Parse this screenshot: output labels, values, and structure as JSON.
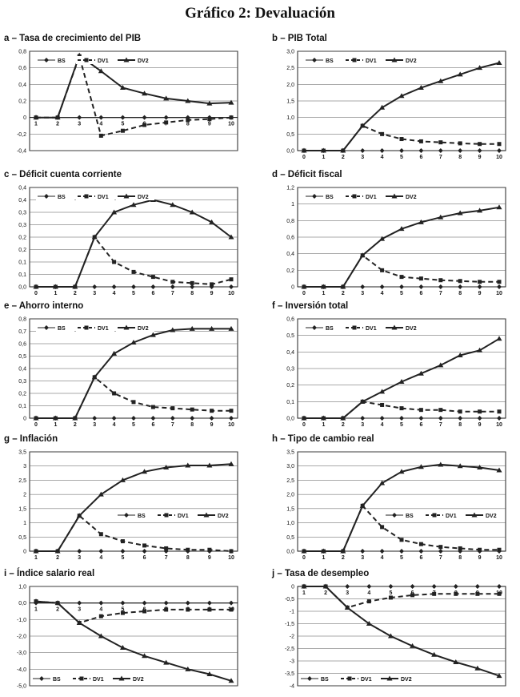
{
  "title": "Gráfico 2: Devaluación",
  "legend": [
    "BS",
    "DV1",
    "DV2"
  ],
  "chart_data": [
    {
      "type": "line",
      "title": "a – Tasa de crecimiento del PIB",
      "x": [
        1,
        2,
        3,
        4,
        5,
        6,
        7,
        8,
        9,
        10
      ],
      "ylim": [
        -0.4,
        0.8
      ],
      "yticks": [
        -0.4,
        -0.2,
        0,
        0.2,
        0.4,
        0.6,
        0.8
      ],
      "ytick_labels": [
        "-0,4",
        "-0,2",
        "0",
        "0,2",
        "0,4",
        "0,6",
        "0,8"
      ],
      "legend_position": "top",
      "series": [
        {
          "name": "BS",
          "values": [
            0,
            0,
            0,
            0,
            0,
            0,
            0,
            0,
            0,
            0
          ]
        },
        {
          "name": "DV1",
          "values": [
            0,
            0,
            0.74,
            -0.22,
            -0.16,
            -0.09,
            -0.06,
            -0.03,
            -0.02,
            0
          ]
        },
        {
          "name": "DV2",
          "values": [
            0,
            0,
            0.75,
            0.56,
            0.36,
            0.29,
            0.23,
            0.2,
            0.17,
            0.18
          ]
        }
      ]
    },
    {
      "type": "line",
      "title": "b – PIB Total",
      "x": [
        0,
        1,
        2,
        3,
        4,
        5,
        6,
        7,
        8,
        9,
        10
      ],
      "ylim": [
        0,
        3
      ],
      "yticks": [
        0,
        0.5,
        1,
        1.5,
        2,
        2.5,
        3
      ],
      "ytick_labels": [
        "0,0",
        "0,5",
        "1,0",
        "1,5",
        "2,0",
        "2,5",
        "3,0"
      ],
      "legend_position": "top",
      "series": [
        {
          "name": "BS",
          "values": [
            0,
            0,
            0,
            0,
            0,
            0,
            0,
            0,
            0,
            0,
            0
          ]
        },
        {
          "name": "DV1",
          "values": [
            0,
            0,
            0,
            0.75,
            0.5,
            0.35,
            0.28,
            0.25,
            0.22,
            0.2,
            0.2
          ]
        },
        {
          "name": "DV2",
          "values": [
            0,
            0,
            0,
            0.75,
            1.3,
            1.65,
            1.9,
            2.1,
            2.3,
            2.5,
            2.65
          ]
        }
      ]
    },
    {
      "type": "line",
      "title": "c – Déficit cuenta corriente",
      "x": [
        0,
        1,
        2,
        3,
        4,
        5,
        6,
        7,
        8,
        9,
        10
      ],
      "ylim": [
        0,
        0.4
      ],
      "yticks": [
        0,
        0.05,
        0.1,
        0.15,
        0.2,
        0.25,
        0.3,
        0.35,
        0.4
      ],
      "ytick_labels": [
        "0,0",
        "0,1",
        "0,1",
        "0,2",
        "0,2",
        "0,3",
        "0,3",
        "0,4",
        "0,4"
      ],
      "legend_position": "top",
      "series": [
        {
          "name": "BS",
          "values": [
            0,
            0,
            0,
            0,
            0,
            0,
            0,
            0,
            0,
            0,
            0
          ]
        },
        {
          "name": "DV1",
          "values": [
            0,
            0,
            0,
            0.2,
            0.1,
            0.06,
            0.04,
            0.02,
            0.015,
            0.01,
            0.03
          ]
        },
        {
          "name": "DV2",
          "values": [
            0,
            0,
            0,
            0.2,
            0.3,
            0.33,
            0.35,
            0.33,
            0.3,
            0.26,
            0.2
          ]
        }
      ]
    },
    {
      "type": "line",
      "title": "d – Déficit fiscal",
      "x": [
        0,
        1,
        2,
        3,
        4,
        5,
        6,
        7,
        8,
        9,
        10
      ],
      "ylim": [
        0,
        1.2
      ],
      "yticks": [
        0,
        0.2,
        0.4,
        0.6,
        0.8,
        1,
        1.2
      ],
      "ytick_labels": [
        "0",
        "0,2",
        "0,4",
        "0,6",
        "0,8",
        "1",
        "1,2"
      ],
      "legend_position": "top",
      "series": [
        {
          "name": "BS",
          "values": [
            0,
            0,
            0,
            0,
            0,
            0,
            0,
            0,
            0,
            0,
            0
          ]
        },
        {
          "name": "DV1",
          "values": [
            0,
            0,
            0,
            0.38,
            0.2,
            0.12,
            0.1,
            0.08,
            0.07,
            0.06,
            0.06
          ]
        },
        {
          "name": "DV2",
          "values": [
            0,
            0,
            0,
            0.38,
            0.58,
            0.7,
            0.78,
            0.84,
            0.89,
            0.92,
            0.96
          ]
        }
      ]
    },
    {
      "type": "line",
      "title": "e – Ahorro interno",
      "x": [
        0,
        1,
        2,
        3,
        4,
        5,
        6,
        7,
        8,
        9,
        10
      ],
      "ylim": [
        0,
        0.8
      ],
      "yticks": [
        0,
        0.1,
        0.2,
        0.3,
        0.4,
        0.5,
        0.6,
        0.7,
        0.8
      ],
      "ytick_labels": [
        "0",
        "0,1",
        "0,2",
        "0,3",
        "0,4",
        "0,5",
        "0,6",
        "0,7",
        "0,8"
      ],
      "legend_position": "top",
      "series": [
        {
          "name": "BS",
          "values": [
            0,
            0,
            0,
            0,
            0,
            0,
            0,
            0,
            0,
            0,
            0
          ]
        },
        {
          "name": "DV1",
          "values": [
            0,
            0,
            0,
            0.33,
            0.2,
            0.13,
            0.09,
            0.08,
            0.07,
            0.06,
            0.06
          ]
        },
        {
          "name": "DV2",
          "values": [
            0,
            0,
            0,
            0.33,
            0.52,
            0.61,
            0.67,
            0.71,
            0.72,
            0.72,
            0.72
          ]
        }
      ]
    },
    {
      "type": "line",
      "title": "f – Inversión total",
      "x": [
        0,
        1,
        2,
        3,
        4,
        5,
        6,
        7,
        8,
        9,
        10
      ],
      "ylim": [
        0,
        0.6
      ],
      "yticks": [
        0,
        0.1,
        0.2,
        0.3,
        0.4,
        0.5,
        0.6
      ],
      "ytick_labels": [
        "0,0",
        "0,1",
        "0,2",
        "0,3",
        "0,4",
        "0,5",
        "0,6"
      ],
      "legend_position": "top",
      "series": [
        {
          "name": "BS",
          "values": [
            0,
            0,
            0,
            0,
            0,
            0,
            0,
            0,
            0,
            0,
            0
          ]
        },
        {
          "name": "DV1",
          "values": [
            0,
            0,
            0,
            0.1,
            0.08,
            0.06,
            0.05,
            0.05,
            0.04,
            0.04,
            0.04
          ]
        },
        {
          "name": "DV2",
          "values": [
            0,
            0,
            0,
            0.1,
            0.16,
            0.22,
            0.27,
            0.32,
            0.38,
            0.41,
            0.48
          ]
        }
      ]
    },
    {
      "type": "line",
      "title": "g – Inflación",
      "x": [
        1,
        2,
        3,
        4,
        5,
        6,
        7,
        8,
        9,
        10
      ],
      "ylim": [
        0,
        3.5
      ],
      "yticks": [
        0,
        0.5,
        1,
        1.5,
        2,
        2.5,
        3,
        3.5
      ],
      "ytick_labels": [
        "0",
        "0,5",
        "1",
        "1,5",
        "2",
        "2,5",
        "3",
        "3,5"
      ],
      "legend_position": "right",
      "series": [
        {
          "name": "BS",
          "values": [
            0,
            0,
            0,
            0,
            0,
            0,
            0,
            0,
            0,
            0
          ]
        },
        {
          "name": "DV1",
          "values": [
            0,
            0,
            1.25,
            0.6,
            0.35,
            0.2,
            0.1,
            0.05,
            0.05,
            0
          ]
        },
        {
          "name": "DV2",
          "values": [
            0,
            0,
            1.25,
            2,
            2.5,
            2.8,
            2.95,
            3.02,
            3.02,
            3.07
          ]
        }
      ]
    },
    {
      "type": "line",
      "title": "h – Tipo de cambio real",
      "x": [
        0,
        1,
        2,
        3,
        4,
        5,
        6,
        7,
        8,
        9,
        10
      ],
      "ylim": [
        0,
        3.5
      ],
      "yticks": [
        0,
        0.5,
        1,
        1.5,
        2,
        2.5,
        3,
        3.5
      ],
      "ytick_labels": [
        "0,0",
        "0,5",
        "1,0",
        "1,5",
        "2,0",
        "2,5",
        "3,0",
        "3,5"
      ],
      "legend_position": "right",
      "series": [
        {
          "name": "BS",
          "values": [
            0,
            0,
            0,
            0,
            0,
            0,
            0,
            0,
            0,
            0,
            0
          ]
        },
        {
          "name": "DV1",
          "values": [
            0,
            0,
            0,
            1.6,
            0.85,
            0.4,
            0.25,
            0.15,
            0.1,
            0.05,
            0.05
          ]
        },
        {
          "name": "DV2",
          "values": [
            0,
            0,
            0,
            1.6,
            2.4,
            2.8,
            2.97,
            3.05,
            3.0,
            2.95,
            2.85
          ]
        }
      ]
    },
    {
      "type": "line",
      "title": "i – Índice salario real",
      "x": [
        1,
        2,
        3,
        4,
        5,
        6,
        7,
        8,
        9,
        10
      ],
      "ylim": [
        -5,
        1
      ],
      "yticks": [
        -5,
        -4,
        -3,
        -2,
        -1,
        0,
        1
      ],
      "ytick_labels": [
        "-5,0",
        "-4,0",
        "-3,0",
        "-2,0",
        "-1,0",
        "0,0",
        "1,0"
      ],
      "legend_position": "bottom",
      "series": [
        {
          "name": "BS",
          "values": [
            0,
            0,
            0,
            0,
            0,
            0,
            0,
            0,
            0,
            0
          ]
        },
        {
          "name": "DV1",
          "values": [
            0.1,
            0,
            -1.2,
            -0.8,
            -0.6,
            -0.5,
            -0.4,
            -0.4,
            -0.4,
            -0.4
          ]
        },
        {
          "name": "DV2",
          "values": [
            0.1,
            0,
            -1.2,
            -2,
            -2.7,
            -3.2,
            -3.6,
            -4,
            -4.3,
            -4.7
          ]
        }
      ]
    },
    {
      "type": "line",
      "title": "j – Tasa de desempleo",
      "x": [
        1,
        2,
        3,
        4,
        5,
        6,
        7,
        8,
        9,
        10
      ],
      "ylim": [
        -4,
        0
      ],
      "yticks": [
        -4,
        -3.5,
        -3,
        -2.5,
        -2,
        -1.5,
        -1,
        -0.5,
        0
      ],
      "ytick_labels": [
        "-4",
        "-3,5",
        "-3",
        "-2,5",
        "-2",
        "-1,5",
        "-1",
        "-0,5",
        "0"
      ],
      "legend_position": "bottom",
      "series": [
        {
          "name": "BS",
          "values": [
            0,
            0,
            0,
            0,
            0,
            0,
            0,
            0,
            0,
            0
          ]
        },
        {
          "name": "DV1",
          "values": [
            0,
            0,
            -0.85,
            -0.6,
            -0.45,
            -0.35,
            -0.3,
            -0.3,
            -0.3,
            -0.3
          ]
        },
        {
          "name": "DV2",
          "values": [
            0,
            0,
            -0.85,
            -1.5,
            -2.0,
            -2.4,
            -2.75,
            -3.05,
            -3.3,
            -3.6
          ]
        }
      ]
    }
  ]
}
